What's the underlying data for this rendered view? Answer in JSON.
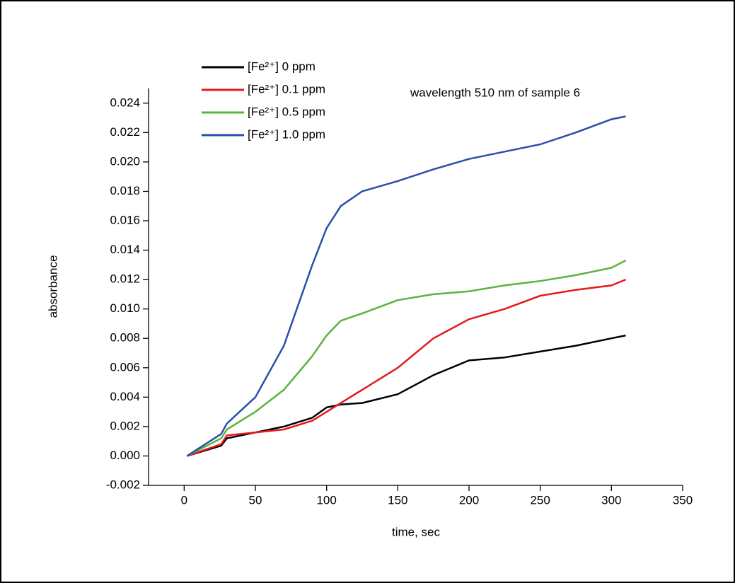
{
  "chart_data": {
    "type": "line",
    "annotation": "wavelength 510 nm of sample 6",
    "x_label": "time, sec",
    "y_label": "absorbance",
    "x": [
      2,
      26,
      30,
      50,
      70,
      90,
      100,
      110,
      125,
      150,
      175,
      200,
      225,
      250,
      275,
      300,
      310
    ],
    "series": [
      {
        "name": "[Fe²⁺] 0 ppm",
        "color": "#000000",
        "values": [
          0,
          0.0007,
          0.0012,
          0.0016,
          0.002,
          0.0026,
          0.0033,
          0.0035,
          0.0036,
          0.0042,
          0.0055,
          0.0065,
          0.0067,
          0.0071,
          0.0075,
          0.008,
          0.0082
        ]
      },
      {
        "name": "[Fe²⁺] 0.1 ppm",
        "color": "#e31a1c",
        "values": [
          0,
          0.0008,
          0.0014,
          0.0016,
          0.0018,
          0.0024,
          0.003,
          0.0036,
          0.0045,
          0.006,
          0.008,
          0.0093,
          0.01,
          0.0109,
          0.0113,
          0.0116,
          0.012
        ]
      },
      {
        "name": "[Fe²⁺] 0.5 ppm",
        "color": "#5ab43c",
        "values": [
          0,
          0.0012,
          0.0018,
          0.003,
          0.0045,
          0.0068,
          0.0082,
          0.0092,
          0.0097,
          0.0106,
          0.011,
          0.0112,
          0.0116,
          0.0119,
          0.0123,
          0.0128,
          0.0133
        ]
      },
      {
        "name": "[Fe²⁺] 1.0 ppm",
        "color": "#2a4fa8",
        "values": [
          0,
          0.0015,
          0.0022,
          0.004,
          0.0075,
          0.013,
          0.0155,
          0.017,
          0.018,
          0.0187,
          0.0195,
          0.0202,
          0.0207,
          0.0212,
          0.022,
          0.0229,
          0.0231
        ]
      }
    ],
    "xlim": [
      -25,
      350
    ],
    "xticks": [
      0,
      50,
      100,
      150,
      200,
      250,
      300,
      350
    ],
    "ylim": [
      -0.002,
      0.025
    ],
    "yticks": [
      {
        "value": -0.002,
        "label": "-0.002"
      },
      {
        "value": 0,
        "label": "0.000"
      },
      {
        "value": 0.002,
        "label": "0.002"
      },
      {
        "value": 0.004,
        "label": "0.004"
      },
      {
        "value": 0.006,
        "label": "0.006"
      },
      {
        "value": 0.008,
        "label": "0.008"
      },
      {
        "value": 0.01,
        "label": "0.010"
      },
      {
        "value": 0.012,
        "label": "0.012"
      },
      {
        "value": 0.014,
        "label": "0.014"
      },
      {
        "value": 0.016,
        "label": "0.016"
      },
      {
        "value": 0.018,
        "label": "0.018"
      },
      {
        "value": 0.02,
        "label": "0.020"
      },
      {
        "value": 0.022,
        "label": "0.022"
      },
      {
        "value": 0.024,
        "label": "0.024"
      }
    ],
    "legend": "upper left"
  }
}
